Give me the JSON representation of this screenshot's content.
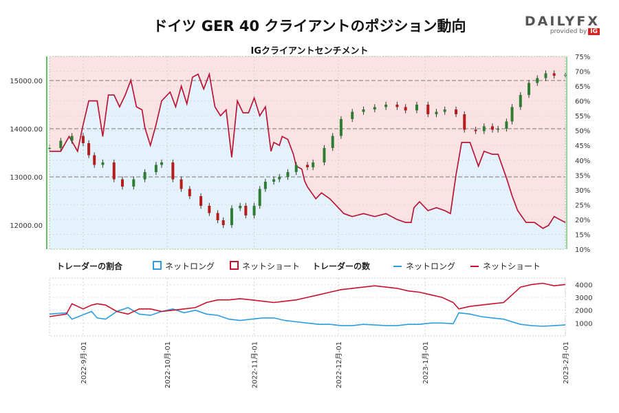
{
  "header": {
    "title": "ドイツ GER 40 クライアントのポジション動向",
    "subtitle": "IGクライアントセンチメント",
    "brand": "DAILYFX",
    "brand_sub": "provided by",
    "brand_ig": "IG"
  },
  "legend": {
    "ratio_title": "トレーダーの割合",
    "ratio_long": "ネットロング",
    "ratio_short": "ネットショート",
    "count_title": "トレーダーの数",
    "count_long": "ネットロング",
    "count_short": "ネットショート"
  },
  "colors": {
    "long": "#2a9de0",
    "short": "#c8102e",
    "long_fill": "#e4f2fb",
    "short_fill": "#fbe3e3",
    "candle_up": "#2e7d32",
    "candle_down": "#b71c1c"
  },
  "chart_data": [
    {
      "type": "candlestick",
      "series_name": "GER 40",
      "y_axis_left": {
        "ticks": [
          "12000.00",
          "13000.00",
          "14000.00",
          "15000.00"
        ],
        "ylim": [
          11500,
          15500
        ]
      },
      "y_axis_right": {
        "ticks": [
          "10%",
          "15%",
          "20%",
          "25%",
          "30%",
          "35%",
          "40%",
          "45%",
          "50%",
          "55%",
          "60%",
          "65%",
          "70%",
          "75%"
        ],
        "ylim": [
          10,
          75
        ]
      },
      "x_ticks": [
        "2022-9月-01",
        "2022-10月-01",
        "2022-11月-01",
        "2022-12月-01",
        "2023-1月-01",
        "2023-2月-01"
      ],
      "x_range_days": [
        0,
        184
      ],
      "close_points": [
        [
          0,
          13600
        ],
        [
          4,
          13750
        ],
        [
          8,
          13850
        ],
        [
          12,
          13700
        ],
        [
          14,
          13450
        ],
        [
          16,
          13250
        ],
        [
          19,
          13300
        ],
        [
          23,
          12950
        ],
        [
          26,
          12800
        ],
        [
          30,
          12950
        ],
        [
          34,
          13100
        ],
        [
          38,
          13250
        ],
        [
          40,
          13300
        ],
        [
          44,
          12950
        ],
        [
          47,
          12750
        ],
        [
          50,
          12600
        ],
        [
          54,
          12400
        ],
        [
          57,
          12250
        ],
        [
          60,
          12100
        ],
        [
          62,
          12000
        ],
        [
          65,
          12350
        ],
        [
          68,
          12400
        ],
        [
          70,
          12200
        ],
        [
          73,
          12400
        ],
        [
          75,
          12750
        ],
        [
          77,
          12900
        ],
        [
          80,
          12950
        ],
        [
          82,
          13000
        ],
        [
          85,
          13100
        ],
        [
          88,
          13250
        ],
        [
          92,
          13200
        ],
        [
          94,
          13300
        ],
        [
          98,
          13600
        ],
        [
          101,
          13850
        ],
        [
          104,
          14200
        ],
        [
          108,
          14350
        ],
        [
          112,
          14400
        ],
        [
          116,
          14450
        ],
        [
          120,
          14500
        ],
        [
          124,
          14450
        ],
        [
          127,
          14380
        ],
        [
          131,
          14500
        ],
        [
          135,
          14300
        ],
        [
          138,
          14350
        ],
        [
          141,
          14400
        ],
        [
          145,
          14300
        ],
        [
          148,
          13980
        ],
        [
          152,
          13950
        ],
        [
          155,
          14050
        ],
        [
          158,
          13980
        ],
        [
          160,
          14000
        ],
        [
          163,
          14150
        ],
        [
          165,
          14450
        ],
        [
          168,
          14700
        ],
        [
          171,
          14950
        ],
        [
          174,
          15050
        ],
        [
          177,
          15150
        ],
        [
          180,
          15100
        ],
        [
          184,
          15120
        ]
      ],
      "long_ratio_pct": [
        [
          0,
          43
        ],
        [
          4,
          43
        ],
        [
          7,
          48
        ],
        [
          10,
          43
        ],
        [
          12,
          52
        ],
        [
          14,
          60
        ],
        [
          17,
          60
        ],
        [
          19,
          48
        ],
        [
          21,
          62
        ],
        [
          23,
          62
        ],
        [
          25,
          58
        ],
        [
          27,
          62
        ],
        [
          29,
          67
        ],
        [
          31,
          58
        ],
        [
          33,
          57
        ],
        [
          34,
          51
        ],
        [
          36,
          45
        ],
        [
          38,
          52
        ],
        [
          40,
          60
        ],
        [
          43,
          63
        ],
        [
          45,
          58
        ],
        [
          47,
          65
        ],
        [
          49,
          59
        ],
        [
          51,
          68
        ],
        [
          53,
          69
        ],
        [
          55,
          64
        ],
        [
          57,
          69
        ],
        [
          59,
          58
        ],
        [
          61,
          55
        ],
        [
          63,
          57
        ],
        [
          65,
          41
        ],
        [
          67,
          60
        ],
        [
          69,
          56
        ],
        [
          71,
          56
        ],
        [
          73,
          61
        ],
        [
          75,
          55
        ],
        [
          77,
          58
        ],
        [
          79,
          43
        ],
        [
          80,
          46
        ],
        [
          82,
          45
        ],
        [
          83,
          48
        ],
        [
          85,
          47
        ],
        [
          87,
          42
        ],
        [
          88,
          38
        ],
        [
          90,
          37
        ],
        [
          91,
          33
        ],
        [
          92,
          31
        ],
        [
          95,
          27
        ],
        [
          97,
          29
        ],
        [
          100,
          27
        ],
        [
          102,
          25
        ],
        [
          105,
          22
        ],
        [
          108,
          21
        ],
        [
          112,
          22
        ],
        [
          116,
          21
        ],
        [
          120,
          22
        ],
        [
          124,
          20
        ],
        [
          127,
          19
        ],
        [
          129,
          19
        ],
        [
          130,
          24
        ],
        [
          132,
          26
        ],
        [
          135,
          23
        ],
        [
          138,
          24
        ],
        [
          141,
          23
        ],
        [
          143,
          22
        ],
        [
          145,
          35
        ],
        [
          147,
          46
        ],
        [
          150,
          46
        ],
        [
          153,
          38
        ],
        [
          155,
          43
        ],
        [
          158,
          42
        ],
        [
          160,
          42
        ],
        [
          163,
          34
        ],
        [
          165,
          28
        ],
        [
          167,
          23
        ],
        [
          170,
          19
        ],
        [
          173,
          19
        ],
        [
          176,
          17
        ],
        [
          178,
          18
        ],
        [
          180,
          21
        ],
        [
          182,
          20
        ],
        [
          184,
          19
        ]
      ],
      "reference_lines": [
        15000,
        14000,
        13000
      ]
    },
    {
      "type": "line",
      "y_axis_right": {
        "ticks": [
          "1000",
          "2000",
          "3000",
          "4000"
        ],
        "ylim": [
          0,
          4500
        ]
      },
      "series": [
        {
          "name": "ネットロング",
          "points": [
            [
              0,
              1700
            ],
            [
              6,
              1800
            ],
            [
              8,
              1300
            ],
            [
              12,
              1650
            ],
            [
              15,
              1900
            ],
            [
              17,
              1400
            ],
            [
              20,
              1300
            ],
            [
              24,
              1900
            ],
            [
              28,
              2200
            ],
            [
              32,
              1700
            ],
            [
              36,
              1600
            ],
            [
              40,
              1900
            ],
            [
              44,
              2100
            ],
            [
              48,
              1800
            ],
            [
              52,
              2000
            ],
            [
              56,
              1700
            ],
            [
              60,
              1600
            ],
            [
              64,
              1300
            ],
            [
              68,
              1200
            ],
            [
              72,
              1300
            ],
            [
              76,
              1400
            ],
            [
              80,
              1400
            ],
            [
              84,
              1200
            ],
            [
              88,
              1100
            ],
            [
              92,
              1000
            ],
            [
              96,
              900
            ],
            [
              100,
              900
            ],
            [
              104,
              800
            ],
            [
              108,
              800
            ],
            [
              112,
              900
            ],
            [
              116,
              850
            ],
            [
              120,
              800
            ],
            [
              124,
              800
            ],
            [
              128,
              900
            ],
            [
              132,
              900
            ],
            [
              136,
              1000
            ],
            [
              140,
              1000
            ],
            [
              144,
              950
            ],
            [
              146,
              1800
            ],
            [
              150,
              1700
            ],
            [
              154,
              1500
            ],
            [
              158,
              1400
            ],
            [
              162,
              1300
            ],
            [
              165,
              1100
            ],
            [
              168,
              900
            ],
            [
              172,
              800
            ],
            [
              176,
              750
            ],
            [
              180,
              800
            ],
            [
              184,
              850
            ]
          ]
        },
        {
          "name": "ネットショート",
          "points": [
            [
              0,
              1500
            ],
            [
              6,
              1700
            ],
            [
              8,
              2500
            ],
            [
              12,
              2100
            ],
            [
              15,
              2400
            ],
            [
              17,
              2500
            ],
            [
              20,
              2400
            ],
            [
              24,
              1900
            ],
            [
              28,
              1700
            ],
            [
              32,
              2100
            ],
            [
              36,
              2100
            ],
            [
              40,
              1900
            ],
            [
              44,
              2000
            ],
            [
              48,
              2100
            ],
            [
              52,
              2200
            ],
            [
              56,
              2600
            ],
            [
              60,
              2800
            ],
            [
              64,
              2800
            ],
            [
              68,
              2900
            ],
            [
              72,
              2800
            ],
            [
              76,
              2700
            ],
            [
              80,
              2600
            ],
            [
              84,
              2700
            ],
            [
              88,
              2800
            ],
            [
              92,
              3000
            ],
            [
              96,
              3200
            ],
            [
              100,
              3400
            ],
            [
              104,
              3600
            ],
            [
              108,
              3700
            ],
            [
              112,
              3800
            ],
            [
              116,
              3900
            ],
            [
              120,
              3800
            ],
            [
              124,
              3700
            ],
            [
              128,
              3500
            ],
            [
              132,
              3400
            ],
            [
              136,
              3200
            ],
            [
              140,
              3000
            ],
            [
              144,
              2600
            ],
            [
              146,
              2100
            ],
            [
              150,
              2300
            ],
            [
              154,
              2400
            ],
            [
              158,
              2500
            ],
            [
              162,
              2600
            ],
            [
              165,
              3200
            ],
            [
              168,
              3800
            ],
            [
              172,
              4000
            ],
            [
              176,
              4100
            ],
            [
              180,
              3900
            ],
            [
              184,
              4000
            ]
          ]
        }
      ]
    }
  ]
}
